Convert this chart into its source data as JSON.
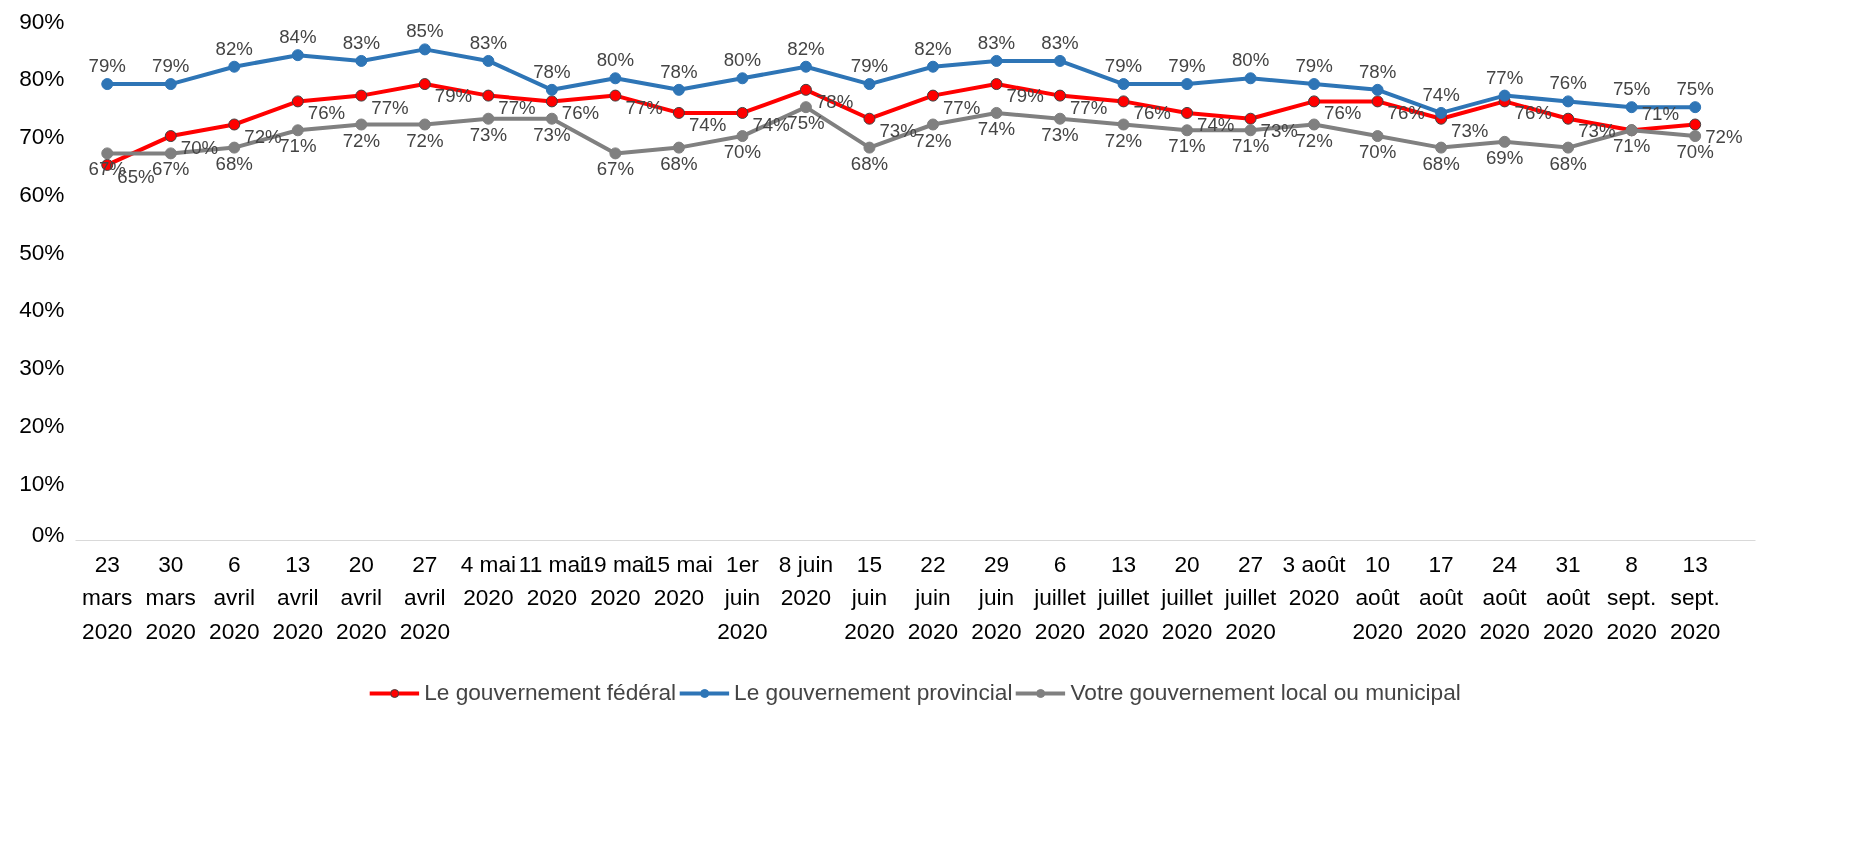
{
  "chart_data": {
    "type": "line",
    "categories": [
      "23 mars 2020",
      "30 mars 2020",
      "6 avril 2020",
      "13 avril 2020",
      "20 avril 2020",
      "27 avril 2020",
      "4 mai 2020",
      "11 mai 2020",
      "19 mai 2020",
      "15 mai 2020",
      "1er juin 2020",
      "8 juin 2020",
      "15 juin 2020",
      "22 juin 2020",
      "29 juin 2020",
      "6 juillet 2020",
      "13 juillet 2020",
      "20 juillet 2020",
      "27 juillet 2020",
      "3 août 2020",
      "10 août 2020",
      "17 août 2020",
      "24 août 2020",
      "31 août 2020",
      "8 sept. 2020",
      "13 sept. 2020"
    ],
    "series": [
      {
        "name": "Le gouvernement fédéral",
        "color": "#ff0000",
        "values": [
          65,
          70,
          72,
          76,
          77,
          79,
          77,
          76,
          77,
          74,
          74,
          78,
          73,
          77,
          79,
          77,
          76,
          74,
          73,
          76,
          76,
          73,
          76,
          73,
          71,
          72
        ],
        "value_labels": [
          "65%",
          "70%",
          "72%",
          "76%",
          "77%",
          "79%",
          "77%",
          "76%",
          "77%",
          "74%",
          "74%",
          "78%",
          "73%",
          "77%",
          "79%",
          "77%",
          "76%",
          "74%",
          "73%",
          "76%",
          "76%",
          "73%",
          "76%",
          "73%",
          "71%",
          "72%"
        ]
      },
      {
        "name": "Le gouvernement provincial",
        "color": "#2e75b6",
        "values": [
          79,
          79,
          82,
          84,
          83,
          85,
          83,
          78,
          80,
          78,
          80,
          82,
          79,
          82,
          83,
          83,
          79,
          79,
          80,
          79,
          78,
          74,
          77,
          76,
          75,
          75
        ],
        "value_labels": [
          "79%",
          "79%",
          "82%",
          "84%",
          "83%",
          "85%",
          "83%",
          "78%",
          "80%",
          "78%",
          "80%",
          "82%",
          "79%",
          "82%",
          "83%",
          "83%",
          "79%",
          "79%",
          "80%",
          "79%",
          "78%",
          "74%",
          "77%",
          "76%",
          "75%",
          "75%"
        ]
      },
      {
        "name": "Votre gouvernement local ou municipal",
        "color": "#808080",
        "values": [
          67,
          67,
          68,
          71,
          72,
          72,
          73,
          73,
          67,
          68,
          70,
          75,
          68,
          72,
          74,
          73,
          72,
          71,
          71,
          72,
          70,
          68,
          69,
          68,
          71,
          70
        ],
        "value_labels": [
          "67%",
          "67%",
          "68%",
          "71%",
          "72%",
          "72%",
          "73%",
          "73%",
          "67%",
          "68%",
          "70%",
          "75%",
          "68%",
          "72%",
          "74%",
          "73%",
          "72%",
          "71%",
          "71%",
          "72%",
          "70%",
          "68%",
          "69%",
          "68%",
          "71%",
          "70%"
        ]
      }
    ],
    "ylim": [
      0,
      90
    ],
    "yticks": [
      {
        "value": 0,
        "label": "0%"
      },
      {
        "value": 10,
        "label": "10%"
      },
      {
        "value": 20,
        "label": "20%"
      },
      {
        "value": 30,
        "label": "30%"
      },
      {
        "value": 40,
        "label": "40%"
      },
      {
        "value": 50,
        "label": "50%"
      },
      {
        "value": 60,
        "label": "60%"
      },
      {
        "value": 70,
        "label": "70%"
      },
      {
        "value": 80,
        "label": "80%"
      },
      {
        "value": 90,
        "label": "90%"
      }
    ],
    "marker": "circle",
    "legend": "bottom"
  }
}
